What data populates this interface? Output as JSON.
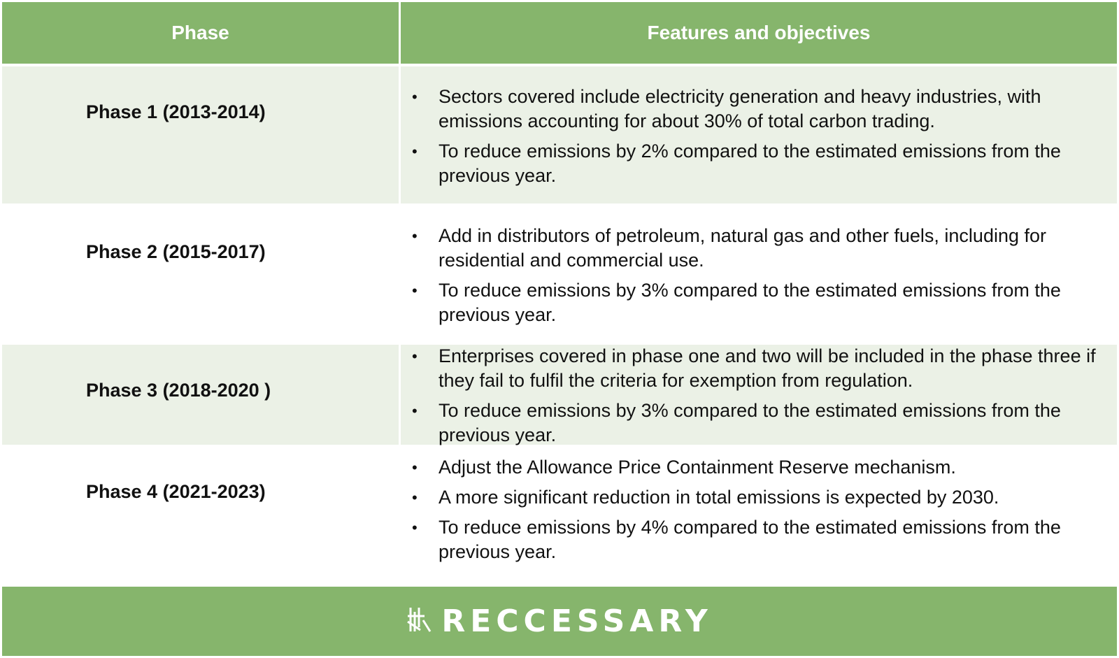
{
  "header": {
    "phase": "Phase",
    "features": "Features and objectives"
  },
  "rows": [
    {
      "phase": "Phase 1 (2013-2014)",
      "bullets": [
        "Sectors covered include electricity generation and heavy industries, with emissions accounting for about 30% of total carbon trading.",
        "To reduce emissions by 2% compared to the estimated emissions from the previous year."
      ]
    },
    {
      "phase": "Phase 2 (2015-2017)",
      "bullets": [
        "Add in distributors of petroleum, natural gas and other fuels, including for residential and commercial use.",
        "To reduce emissions by 3% compared to the estimated emissions from the previous year."
      ]
    },
    {
      "phase": "Phase 3 (2018-2020 )",
      "bullets": [
        "Enterprises covered in phase one and two will be included in the phase three if they fail to fulfil the criteria for exemption from regulation.",
        "To reduce emissions by 3% compared to the estimated emissions from the previous year."
      ]
    },
    {
      "phase": "Phase 4 (2021-2023)",
      "bullets": [
        "Adjust the Allowance Price Containment Reserve mechanism.",
        "A more significant reduction in total emissions is expected by 2030.",
        "To reduce emissions by 4% compared to the estimated emissions from the previous year."
      ]
    }
  ],
  "footer": {
    "brand": "RECCESSARY",
    "logo_icon": "reccessary-logo-icon"
  },
  "colors": {
    "header_green": "#86b56c",
    "row_shade": "#ebf1e6"
  }
}
